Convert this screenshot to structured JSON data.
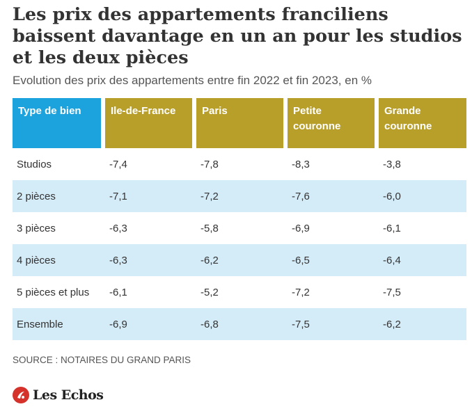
{
  "title": "Les prix des appartements franciliens baissent davantage en un an pour les studios et les deux pièces",
  "subtitle": "Evolution des prix des appartements entre fin 2022 et fin 2023, en %",
  "source": "SOURCE : NOTAIRES DU GRAND PARIS",
  "logo": {
    "text": "Les Echos",
    "icon": "les-echos-logo-icon",
    "color": "#d4322b"
  },
  "colors": {
    "header_type": "#1ca3dd",
    "header_region": "#b89f2a",
    "row_alt": "#d4ebf8"
  },
  "chart_data": {
    "type": "table",
    "columns": [
      "Type de bien",
      "Ile-de-France",
      "Paris",
      "Petite couronne",
      "Grande couronne"
    ],
    "rows": [
      {
        "label": "Studios",
        "values": [
          "-7,4",
          "-7,8",
          "-8,3",
          "-3,8"
        ]
      },
      {
        "label": "2 pièces",
        "values": [
          "-7,1",
          "-7,2",
          "-7,6",
          "-6,0"
        ]
      },
      {
        "label": "3 pièces",
        "values": [
          "-6,3",
          "-5,8",
          "-6,9",
          "-6,1"
        ]
      },
      {
        "label": "4 pièces",
        "values": [
          "-6,3",
          "-6,2",
          "-6,5",
          "-6,4"
        ]
      },
      {
        "label": "5 pièces et plus",
        "values": [
          "-6,1",
          "-5,2",
          "-7,2",
          "-7,5"
        ]
      },
      {
        "label": "Ensemble",
        "values": [
          "-6,9",
          "-6,8",
          "-7,5",
          "-6,2"
        ]
      }
    ]
  }
}
